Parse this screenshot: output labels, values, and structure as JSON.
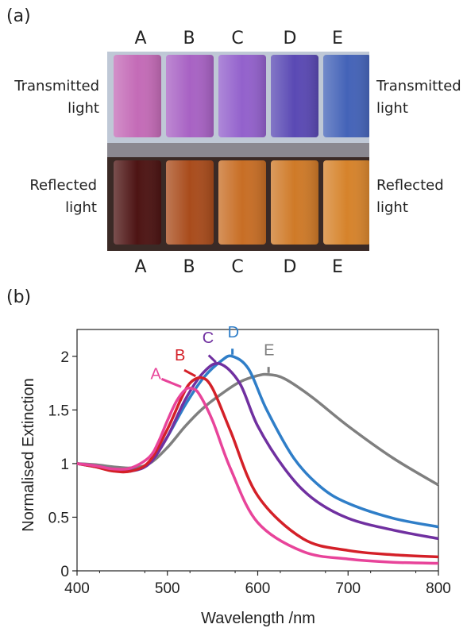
{
  "figure": {
    "panel_a_label": "(a)",
    "panel_b_label": "(b)",
    "columns_top": [
      "A",
      "B",
      "C",
      "D",
      "E"
    ],
    "columns_bottom": [
      "A",
      "B",
      "C",
      "D",
      "E"
    ],
    "left_top_label": [
      "Transmitted",
      "light"
    ],
    "left_bottom_label": [
      "Reflected",
      "light"
    ],
    "right_top_label": [
      "Transmitted",
      "light"
    ],
    "right_bottom_label": [
      "Reflected",
      "light"
    ],
    "cuvette_colors": {
      "transmitted": [
        "#c46bb7",
        "#a862c4",
        "#9361cc",
        "#5a49b4",
        "#4463b8"
      ],
      "reflected": [
        "#4d1413",
        "#a94c1c",
        "#c86e25",
        "#cf7a28",
        "#d6832b"
      ]
    }
  },
  "chart_data": {
    "type": "line",
    "xlabel": "Wavelength /nm",
    "ylabel": "Normalised Extinction",
    "xlim": [
      400,
      800
    ],
    "ylim": [
      0,
      2.25
    ],
    "xticks": [
      400,
      500,
      600,
      700,
      800
    ],
    "yticks": [
      0,
      0.5,
      1,
      1.5,
      2
    ],
    "ytick_labels": [
      "0",
      "0.5",
      "1",
      "1.5",
      "2"
    ],
    "grid": false,
    "series": [
      {
        "name": "A",
        "color": "#e8449a",
        "peak": [
          527,
          1.7
        ],
        "x": [
          400,
          420,
          440,
          460,
          480,
          490,
          500,
          510,
          520,
          527,
          535,
          550,
          570,
          600,
          650,
          700,
          750,
          800
        ],
        "y": [
          1.0,
          0.98,
          0.95,
          0.96,
          1.06,
          1.2,
          1.4,
          1.58,
          1.69,
          1.7,
          1.65,
          1.4,
          0.95,
          0.45,
          0.18,
          0.11,
          0.08,
          0.07
        ]
      },
      {
        "name": "B",
        "color": "#d42028",
        "peak": [
          538,
          1.8
        ],
        "x": [
          400,
          420,
          440,
          460,
          480,
          500,
          515,
          525,
          538,
          550,
          570,
          600,
          650,
          700,
          750,
          800
        ],
        "y": [
          1.0,
          0.97,
          0.93,
          0.93,
          1.02,
          1.32,
          1.6,
          1.75,
          1.8,
          1.7,
          1.3,
          0.7,
          0.3,
          0.19,
          0.15,
          0.13
        ]
      },
      {
        "name": "C",
        "color": "#7030a0",
        "peak": [
          558,
          1.93
        ],
        "x": [
          400,
          420,
          440,
          460,
          480,
          500,
          520,
          540,
          558,
          580,
          600,
          630,
          660,
          700,
          750,
          800
        ],
        "y": [
          1.0,
          0.97,
          0.94,
          0.93,
          1.0,
          1.25,
          1.6,
          1.85,
          1.93,
          1.75,
          1.35,
          0.95,
          0.68,
          0.49,
          0.38,
          0.3
        ]
      },
      {
        "name": "D",
        "color": "#2f7ec8",
        "peak": [
          572,
          2.0
        ],
        "x": [
          400,
          420,
          440,
          460,
          480,
          500,
          520,
          540,
          560,
          572,
          590,
          610,
          640,
          670,
          700,
          750,
          800
        ],
        "y": [
          1.0,
          0.98,
          0.95,
          0.94,
          1.0,
          1.25,
          1.55,
          1.8,
          1.96,
          2.0,
          1.88,
          1.5,
          1.05,
          0.78,
          0.63,
          0.49,
          0.41
        ]
      },
      {
        "name": "E",
        "color": "#7f7f7f",
        "peak": [
          612,
          1.83
        ],
        "x": [
          400,
          420,
          440,
          460,
          480,
          500,
          520,
          540,
          560,
          580,
          600,
          612,
          630,
          660,
          700,
          750,
          800
        ],
        "y": [
          1.0,
          0.99,
          0.97,
          0.96,
          1.0,
          1.15,
          1.35,
          1.52,
          1.65,
          1.76,
          1.82,
          1.83,
          1.79,
          1.62,
          1.35,
          1.05,
          0.8
        ]
      }
    ]
  }
}
